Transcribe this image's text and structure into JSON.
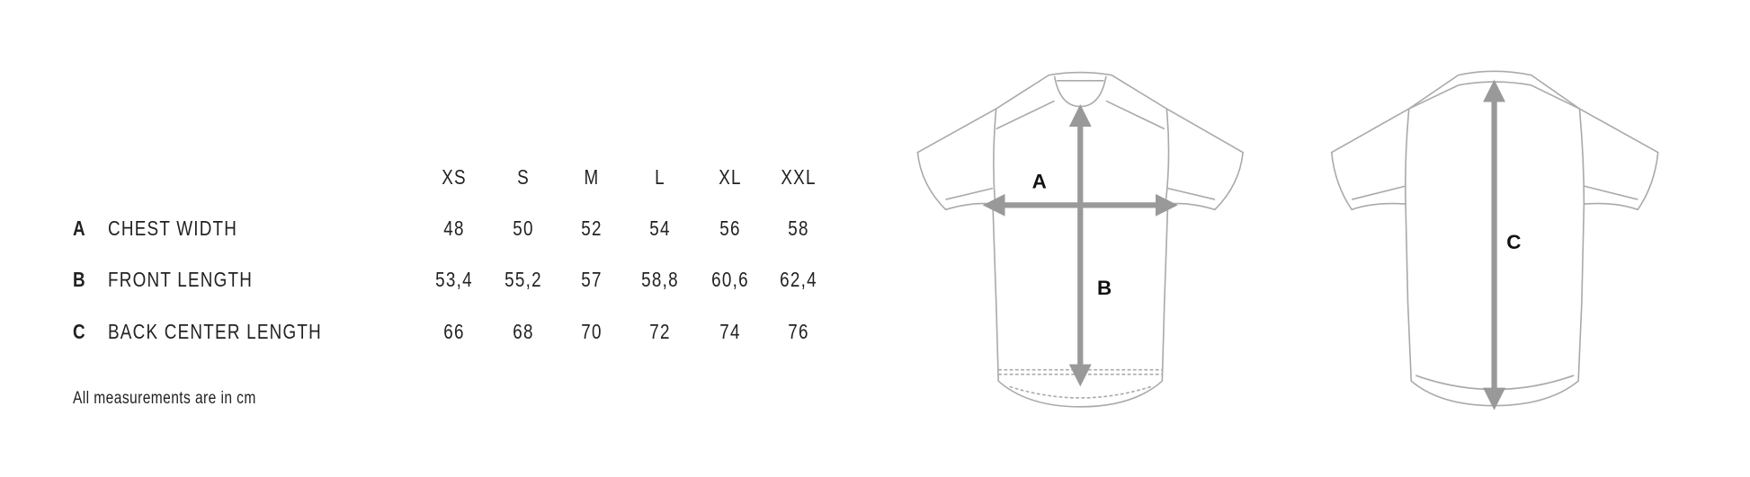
{
  "sizes": [
    "XS",
    "S",
    "M",
    "L",
    "XL",
    "XXL"
  ],
  "rows": [
    {
      "key": "A",
      "label": "CHEST WIDTH",
      "values": [
        "48",
        "50",
        "52",
        "54",
        "56",
        "58"
      ]
    },
    {
      "key": "B",
      "label": "FRONT LENGTH",
      "values": [
        "53,4",
        "55,2",
        "57",
        "58,8",
        "60,6",
        "62,4"
      ]
    },
    {
      "key": "C",
      "label": "BACK CENTER LENGTH",
      "values": [
        "66",
        "68",
        "70",
        "72",
        "74",
        "76"
      ]
    }
  ],
  "note": "All measurements are in cm",
  "diagram": {
    "front_labels": [
      "A",
      "B"
    ],
    "back_label": "C",
    "arrow_color": "#999999",
    "outline_color": "#aaaaaa"
  }
}
